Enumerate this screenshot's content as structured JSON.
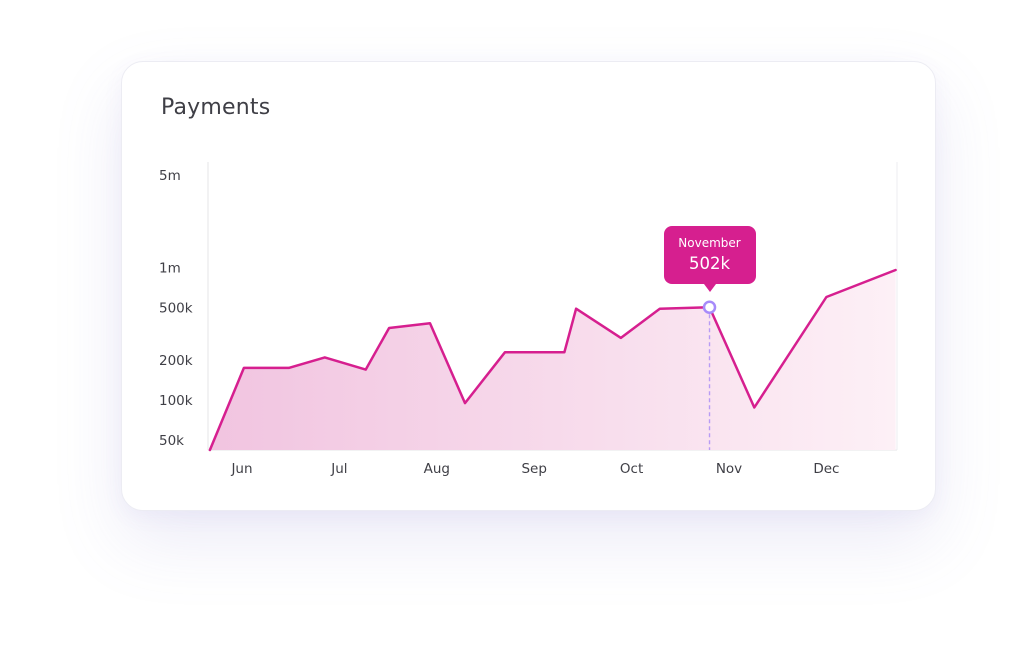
{
  "card": {
    "title": "Payments"
  },
  "chart_data": {
    "type": "area",
    "title": "Payments",
    "xlabel": "",
    "ylabel": "",
    "y_scale": "log",
    "ylim": [
      50000,
      5000000
    ],
    "yticks": [
      {
        "value": 5000000,
        "label": "5m"
      },
      {
        "value": 1000000,
        "label": "1m"
      },
      {
        "value": 500000,
        "label": "500k"
      },
      {
        "value": 200000,
        "label": "200k"
      },
      {
        "value": 100000,
        "label": "100k"
      },
      {
        "value": 50000,
        "label": "50k"
      }
    ],
    "xticks": [
      "Jun",
      "Jul",
      "Aug",
      "Sep",
      "Oct",
      "Nov",
      "Dec"
    ],
    "grid": false,
    "x": [
      -0.33,
      0.02,
      0.48,
      0.85,
      1.27,
      1.51,
      1.93,
      2.29,
      2.7,
      3.29,
      3.31,
      3.43,
      3.89,
      4.29,
      4.8,
      5.26,
      6.0,
      6.71
    ],
    "values": [
      40000,
      175000,
      175000,
      210000,
      170000,
      350000,
      380000,
      95000,
      230000,
      230000,
      230000,
      490000,
      295000,
      490000,
      502000,
      88000,
      600000,
      960000
    ],
    "series_color": "#d61f8f",
    "fill_colors": [
      "#f1c4e0",
      "#fdf0f6"
    ],
    "highlight": {
      "x": 4.8,
      "label": "November",
      "value_label": "502k",
      "marker_color": "#a78bfa",
      "guide_color": "#b89cf5",
      "tooltip_color": "#d61f8f"
    }
  }
}
